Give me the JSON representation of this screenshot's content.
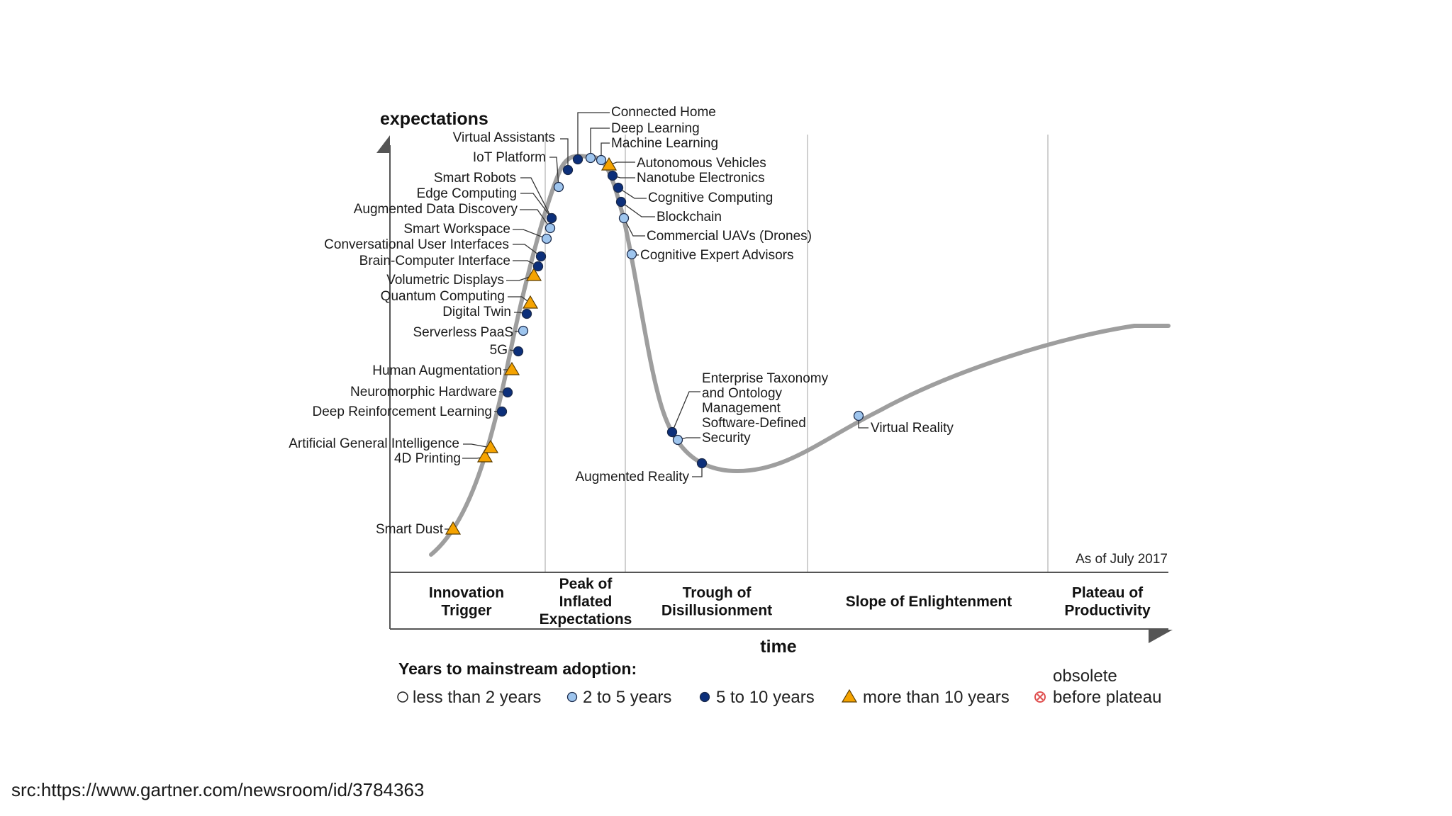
{
  "axes": {
    "y_label": "expectations",
    "x_label": "time"
  },
  "phases": [
    {
      "lines": [
        "Innovation",
        "Trigger"
      ]
    },
    {
      "lines": [
        "Peak of",
        "Inflated",
        "Expectations"
      ]
    },
    {
      "lines": [
        "Trough  of",
        "Disillusionment"
      ]
    },
    {
      "lines": [
        "Slope of Enlightenment"
      ]
    },
    {
      "lines": [
        "Plateau of",
        "Productivity"
      ]
    }
  ],
  "as_of": "As of July 2017",
  "technologies": [
    {
      "name": "Smart Dust",
      "category": "10plus"
    },
    {
      "name": "4D Printing",
      "category": "10plus"
    },
    {
      "name": "Artificial General Intelligence",
      "category": "10plus"
    },
    {
      "name": "Deep Reinforcement Learning",
      "category": "5to10"
    },
    {
      "name": "Neuromorphic Hardware",
      "category": "5to10"
    },
    {
      "name": "Human Augmentation",
      "category": "10plus"
    },
    {
      "name": "5G",
      "category": "5to10"
    },
    {
      "name": "Serverless PaaS",
      "category": "2to5"
    },
    {
      "name": "Digital Twin",
      "category": "5to10"
    },
    {
      "name": "Quantum Computing",
      "category": "10plus"
    },
    {
      "name": "Volumetric Displays",
      "category": "10plus"
    },
    {
      "name": "Brain-Computer Interface",
      "category": "5to10"
    },
    {
      "name": "Conversational User Interfaces",
      "category": "5to10"
    },
    {
      "name": "Smart Workspace",
      "category": "2to5"
    },
    {
      "name": "Augmented Data Discovery",
      "category": "2to5"
    },
    {
      "name": "Edge Computing",
      "category": "5to10"
    },
    {
      "name": "Smart Robots",
      "category": "5to10"
    },
    {
      "name": "IoT Platform",
      "category": "2to5"
    },
    {
      "name": "Virtual Assistants",
      "category": "5to10"
    },
    {
      "name": "Connected Home",
      "category": "5to10"
    },
    {
      "name": "Deep Learning",
      "category": "2to5"
    },
    {
      "name": "Machine Learning",
      "category": "2to5"
    },
    {
      "name": "Autonomous Vehicles",
      "category": "10plus"
    },
    {
      "name": "Nanotube Electronics",
      "category": "5to10"
    },
    {
      "name": "Cognitive Computing",
      "category": "5to10"
    },
    {
      "name": "Blockchain",
      "category": "5to10"
    },
    {
      "name": "Commercial UAVs (Drones)",
      "category": "2to5"
    },
    {
      "name": "Cognitive Expert Advisors",
      "category": "2to5"
    },
    {
      "name": "Enterprise Taxonomy\nand Ontology\nManagement",
      "category": "5to10"
    },
    {
      "name": "Software-Defined\nSecurity",
      "category": "2to5"
    },
    {
      "name": "Augmented Reality",
      "category": "5to10"
    },
    {
      "name": "Virtual Reality",
      "category": "2to5"
    }
  ],
  "legend": {
    "title": "Years to mainstream adoption:",
    "items": [
      {
        "label": "less than 2 years",
        "category": "lt2"
      },
      {
        "label": "2 to 5 years",
        "category": "2to5"
      },
      {
        "label": "5 to 10 years",
        "category": "5to10"
      },
      {
        "label": "more than 10 years",
        "category": "10plus"
      },
      {
        "label": "obsolete\nbefore plateau",
        "category": "obsolete"
      }
    ]
  },
  "colors": {
    "curve": "#9e9e9e",
    "lt2": "#ffffff",
    "2to5": "#9ec5ee",
    "5to10": "#0c2f7a",
    "10plus": "#f5a300",
    "obsolete": "#e05050",
    "gridline": "#d0d0d0",
    "axis": "#555555"
  },
  "source": "src:https://www.gartner.com/newsroom/id/3784363"
}
